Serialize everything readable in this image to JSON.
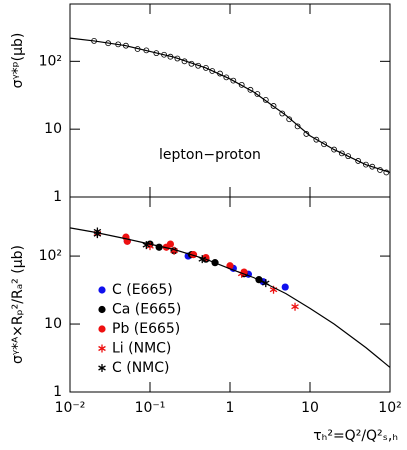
{
  "chart_data": [
    {
      "type": "scatter",
      "xscale": "log",
      "yscale": "log",
      "ylabel": "σᵞ*ᵖ(μb)",
      "annotation": "lepton−proton",
      "xlim": [
        0.01,
        100
      ],
      "ylim": [
        1,
        700
      ],
      "yticks": [
        1,
        10,
        {
          "value": 100,
          "label": "10²"
        }
      ],
      "series": [
        {
          "style": "open-circle",
          "color": "#000000",
          "x": [
            0.02,
            0.03,
            0.04,
            0.05,
            0.07,
            0.09,
            0.12,
            0.15,
            0.18,
            0.22,
            0.27,
            0.33,
            0.4,
            0.5,
            0.6,
            0.75,
            0.9,
            1.1,
            1.4,
            1.8,
            2.2,
            2.8,
            3.5,
            4.5,
            5.5,
            7,
            9,
            12,
            15,
            20,
            25,
            30,
            40,
            50,
            60,
            75,
            90
          ],
          "values": [
            200,
            185,
            178,
            170,
            152,
            145,
            132,
            125,
            117,
            110,
            100,
            92,
            86,
            80,
            72,
            66,
            58,
            52,
            45,
            38,
            33,
            27,
            22,
            17,
            14,
            11,
            8.5,
            7,
            6,
            5,
            4.4,
            4,
            3.4,
            3,
            2.8,
            2.5,
            2.3
          ]
        },
        {
          "style": "line",
          "color": "#000000",
          "x": [
            0.01,
            0.02,
            0.05,
            0.1,
            0.2,
            0.5,
            1,
            2,
            5,
            10,
            20,
            50,
            100
          ],
          "values": [
            220,
            200,
            170,
            140,
            115,
            80,
            55,
            35,
            16,
            8,
            5,
            3,
            2.3
          ]
        }
      ]
    },
    {
      "type": "scatter",
      "xscale": "log",
      "yscale": "log",
      "ylabel": "σᵞ*ᴬ×Rₚ²/Rₐ² (μb)",
      "xlabel": "τₕ²=Q²/Q²ₛ,ₕ",
      "xlim": [
        0.01,
        100
      ],
      "ylim": [
        1,
        740
      ],
      "xticks": [
        {
          "value": 0.01,
          "label": "10⁻²"
        },
        {
          "value": 0.1,
          "label": "10⁻¹"
        },
        1,
        10,
        {
          "value": 100,
          "label": "10²"
        }
      ],
      "yticks": [
        1,
        10,
        {
          "value": 100,
          "label": "10²"
        }
      ],
      "series": [
        {
          "name": "C (E665)",
          "style": "dot",
          "color": "#1010ee",
          "x": [
            0.052,
            0.3,
            1.1,
            1.7,
            2.6,
            4.9
          ],
          "values": [
            166,
            100,
            66,
            54,
            42,
            35
          ]
        },
        {
          "name": "Ca (E665)",
          "style": "dot",
          "color": "#000000",
          "x": [
            0.1,
            0.13,
            0.2,
            0.33,
            0.5,
            0.65,
            1.5,
            2.3
          ],
          "values": [
            150,
            135,
            120,
            105,
            90,
            80,
            55,
            45
          ]
        },
        {
          "name": "Pb (E665)",
          "style": "dot",
          "color": "#ee1010",
          "x": [
            0.05,
            0.052,
            0.16,
            0.18,
            0.35,
            0.5,
            1.0,
            1.5
          ],
          "values": [
            190,
            165,
            135,
            150,
            105,
            95,
            72,
            58
          ]
        },
        {
          "name": "Li (NMC)",
          "style": "star",
          "color": "#ee1010",
          "x": [
            0.022,
            0.1,
            0.2,
            1.4,
            3.5,
            6.5
          ],
          "values": [
            215,
            140,
            120,
            55,
            32,
            18
          ]
        },
        {
          "name": "C (NMC)",
          "style": "star",
          "color": "#000000",
          "x": [
            0.022,
            0.022,
            0.09,
            0.45,
            2.8
          ],
          "values": [
            230,
            210,
            145,
            90,
            40
          ]
        },
        {
          "style": "line",
          "color": "#000000",
          "x": [
            0.01,
            0.02,
            0.05,
            0.1,
            0.2,
            0.5,
            1,
            2,
            5,
            10,
            20,
            50,
            100
          ],
          "values": [
            260,
            225,
            180,
            150,
            125,
            90,
            65,
            48,
            28,
            17,
            10,
            4.5,
            2.3
          ]
        }
      ]
    }
  ]
}
